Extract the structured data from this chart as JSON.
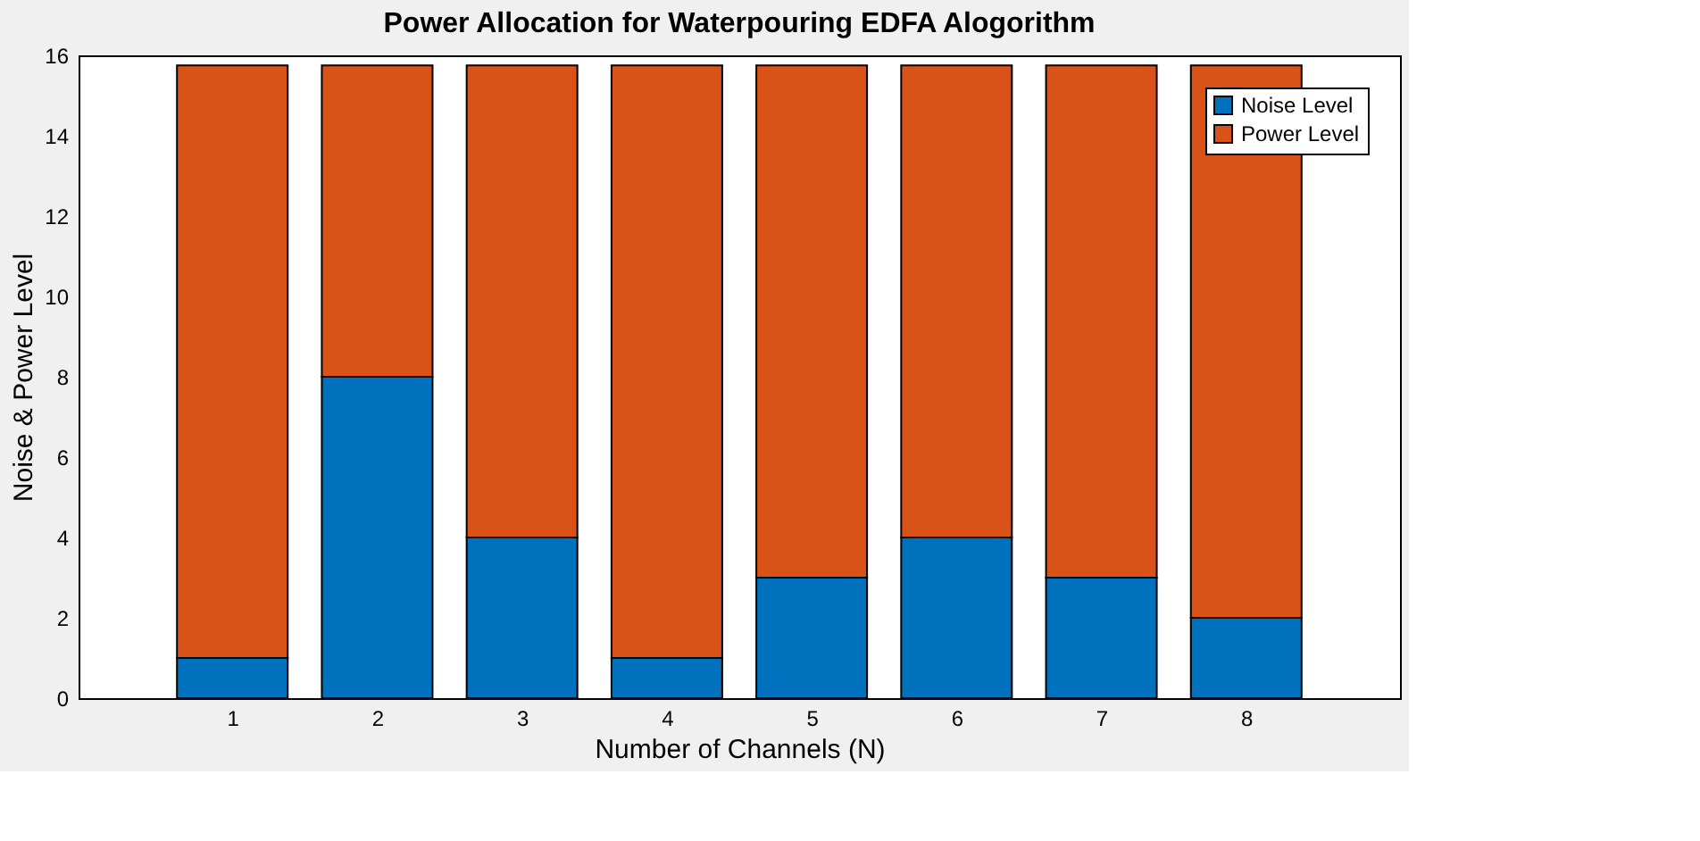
{
  "chart_data": {
    "type": "bar",
    "title": "Power Allocation for Waterpouring EDFA Alogorithm",
    "xlabel": "Number of Channels (N)",
    "ylabel": "Noise & Power Level",
    "x": [
      1,
      2,
      3,
      4,
      5,
      6,
      7,
      8
    ],
    "stacked": true,
    "series": [
      {
        "name": "Noise Level",
        "color": "#0072bd",
        "values": [
          1,
          8,
          4,
          1,
          3,
          4,
          3,
          2
        ]
      },
      {
        "name": "Power Level",
        "color": "#d95319",
        "values": [
          14.75,
          7.75,
          11.75,
          14.75,
          12.75,
          11.75,
          12.75,
          13.75
        ]
      }
    ],
    "xlim": [
      0,
      9
    ],
    "xticks": [
      1,
      2,
      3,
      4,
      5,
      6,
      7,
      8
    ],
    "ylim": [
      0,
      16
    ],
    "yticks": [
      0,
      2,
      4,
      6,
      8,
      10,
      12,
      14,
      16
    ],
    "grid": false,
    "legend": "top right"
  }
}
